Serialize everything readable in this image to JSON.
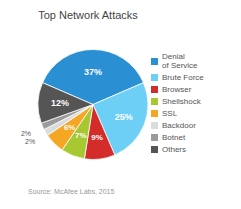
{
  "chart_data": {
    "type": "pie",
    "title": "Top Network Attacks",
    "categories": [
      "Denial\nof Service",
      "Brute Force",
      "Browser",
      "Shellshock",
      "SSL",
      "Backdoor",
      "Botnet",
      "Others"
    ],
    "values": [
      37,
      25,
      9,
      7,
      6,
      2,
      2,
      12
    ],
    "value_labels": [
      "37%",
      "25%",
      "9%",
      "7%",
      "6%",
      "2%",
      "2%",
      "12%"
    ],
    "colors": [
      "#2b8fd4",
      "#6dcff6",
      "#d42b2b",
      "#a8c832",
      "#f5a623",
      "#dcdcdc",
      "#9b9b9b",
      "#555555"
    ],
    "data_labels": true,
    "legend": "right",
    "annotations": [
      "Source: McAfee Labs, 2015"
    ]
  }
}
